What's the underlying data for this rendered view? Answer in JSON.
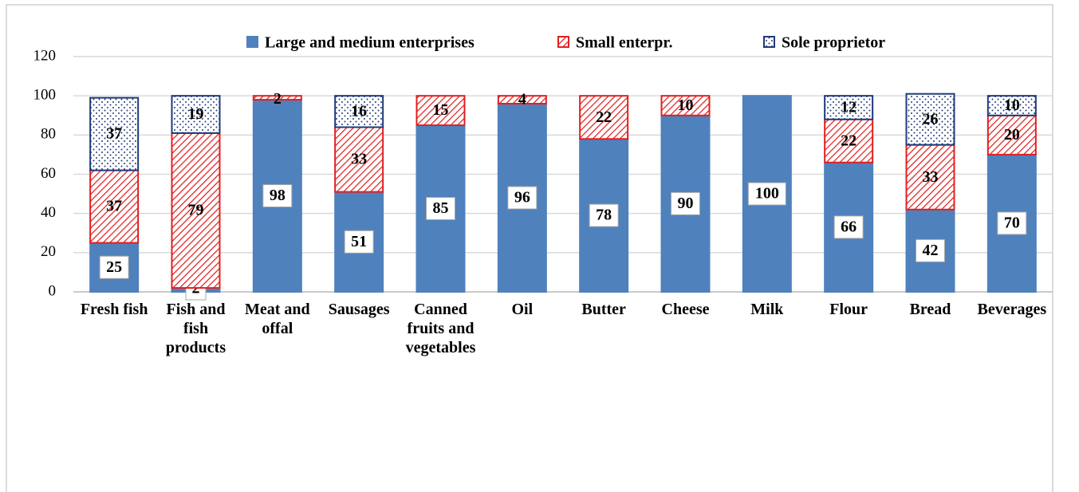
{
  "chart_data": {
    "type": "stacked_bar",
    "categories": [
      "Fresh fish",
      "Fish and fish products",
      "Meat and offal",
      "Sausages",
      "Canned fruits and vegetables",
      "Oil",
      "Butter",
      "Cheese",
      "Milk",
      "Flour",
      "Bread",
      "Beverages"
    ],
    "series": [
      {
        "name": "Large and medium enterprises",
        "color": "#4f81bd",
        "values": [
          25,
          2,
          98,
          51,
          85,
          96,
          78,
          90,
          100,
          66,
          42,
          70
        ]
      },
      {
        "name": "Small enterpr.",
        "color": "#e02020",
        "values": [
          37,
          79,
          2,
          33,
          15,
          4,
          22,
          10,
          null,
          22,
          33,
          20
        ]
      },
      {
        "name": "Sole proprietor",
        "color": "#1f3a7a",
        "values": [
          37,
          19,
          null,
          16,
          null,
          null,
          null,
          null,
          null,
          12,
          26,
          10
        ]
      }
    ],
    "ylim": [
      0,
      120
    ],
    "yticks": [
      0,
      20,
      40,
      60,
      80,
      100,
      120
    ],
    "grid": true,
    "legend": "top"
  }
}
